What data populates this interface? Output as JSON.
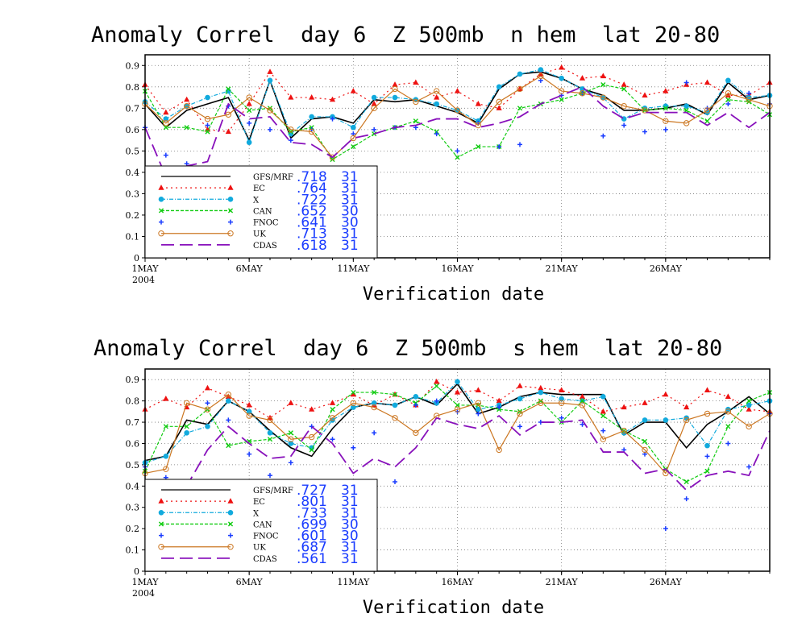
{
  "chart_data": [
    {
      "type": "line",
      "title": "Anomaly Correl  day 6  Z 500mb  n hem  lat 20-80",
      "xlabel": "Verification date",
      "ylabel": "",
      "ylim": [
        0,
        0.95
      ],
      "xlim": [
        1,
        31
      ],
      "grid": true,
      "legend_position": "bottom-left",
      "x_ticks": [
        {
          "day": 1,
          "label": "1MAY",
          "sub": "2004"
        },
        {
          "day": 6,
          "label": "6MAY"
        },
        {
          "day": 11,
          "label": "11MAY"
        },
        {
          "day": 16,
          "label": "16MAY"
        },
        {
          "day": 21,
          "label": "21MAY"
        },
        {
          "day": 26,
          "label": "26MAY"
        }
      ],
      "y_ticks": [
        "0",
        "0.1",
        "0.2",
        "0.3",
        "0.4",
        "0.5",
        "0.6",
        "0.7",
        "0.8",
        "0.9"
      ],
      "days": [
        1,
        2,
        3,
        4,
        5,
        6,
        7,
        8,
        9,
        10,
        11,
        12,
        13,
        14,
        15,
        16,
        17,
        18,
        19,
        20,
        21,
        22,
        23,
        24,
        25,
        26,
        27,
        28,
        29,
        30,
        31
      ],
      "series": [
        {
          "name": "GFS/MRF",
          "score": ".718",
          "count": "31",
          "color": "#000000",
          "style": "solid",
          "marker": "none",
          "values": [
            0.72,
            0.61,
            0.69,
            0.72,
            0.75,
            0.55,
            0.83,
            0.56,
            0.65,
            0.66,
            0.63,
            0.74,
            0.73,
            0.74,
            0.71,
            0.68,
            0.63,
            0.79,
            0.86,
            0.87,
            0.84,
            0.79,
            0.76,
            0.69,
            0.69,
            0.7,
            0.72,
            0.67,
            0.82,
            0.74,
            0.76
          ]
        },
        {
          "name": "EC",
          "score": ".764",
          "count": "31",
          "color": "#ee1111",
          "style": "dotted",
          "marker": "triangle",
          "values": [
            0.81,
            0.68,
            0.74,
            0.6,
            0.59,
            0.72,
            0.87,
            0.75,
            0.75,
            0.74,
            0.78,
            0.72,
            0.81,
            0.82,
            0.75,
            0.78,
            0.72,
            0.7,
            0.79,
            0.86,
            0.89,
            0.84,
            0.85,
            0.81,
            0.76,
            0.78,
            0.81,
            0.82,
            0.76,
            0.76,
            0.82
          ]
        },
        {
          "name": "X",
          "score": ".722",
          "count": "31",
          "color": "#11aadd",
          "style": "dashdot",
          "marker": "circle",
          "values": [
            0.73,
            0.65,
            0.71,
            0.75,
            0.78,
            0.54,
            0.83,
            0.58,
            0.66,
            0.66,
            0.61,
            0.75,
            0.75,
            0.74,
            0.72,
            0.69,
            0.64,
            0.8,
            0.86,
            0.88,
            0.84,
            0.79,
            0.75,
            0.65,
            0.7,
            0.71,
            0.71,
            0.68,
            0.83,
            0.75,
            0.76
          ]
        },
        {
          "name": "CAN",
          "score": ".652",
          "count": "30",
          "color": "#11cc11",
          "style": "shortdash",
          "marker": "x",
          "values": [
            0.78,
            0.61,
            0.61,
            0.59,
            0.79,
            0.69,
            0.7,
            0.59,
            0.61,
            0.46,
            0.52,
            0.58,
            0.61,
            0.64,
            0.59,
            0.47,
            0.52,
            0.52,
            0.7,
            0.72,
            0.74,
            0.77,
            0.81,
            0.79,
            0.69,
            0.7,
            0.69,
            0.64,
            0.74,
            0.73,
            0.67
          ]
        },
        {
          "name": "FNOC",
          "score": ".641",
          "count": "30",
          "color": "#1a3cff",
          "style": "none",
          "marker": "plus",
          "values": [
            0.61,
            0.48,
            0.44,
            0.62,
            0.71,
            0.63,
            0.6,
            0.55,
            0.6,
            0.65,
            0.58,
            0.6,
            0.61,
            0.61,
            0.58,
            0.5,
            0.63,
            0.52,
            0.53,
            0.83,
            0.76,
            0.77,
            0.57,
            0.62,
            0.59,
            0.6,
            0.82,
            0.7,
            0.72,
            0.77,
            0.72
          ]
        },
        {
          "name": "UK",
          "score": ".713",
          "count": "31",
          "color": "#cc7722",
          "style": "solid",
          "marker": "circle-open",
          "values": [
            0.72,
            0.63,
            0.71,
            0.65,
            0.67,
            0.75,
            0.69,
            0.6,
            0.59,
            0.47,
            0.56,
            0.7,
            0.79,
            0.73,
            0.78,
            0.69,
            0.62,
            0.73,
            0.79,
            0.85,
            0.78,
            0.77,
            0.75,
            0.71,
            0.69,
            0.64,
            0.63,
            0.69,
            0.77,
            0.74,
            0.71
          ]
        },
        {
          "name": "CDAS",
          "score": ".618",
          "count": "31",
          "color": "#8811bb",
          "style": "longdash",
          "marker": "none",
          "values": [
            0.61,
            0.38,
            0.43,
            0.45,
            0.72,
            0.65,
            0.66,
            0.54,
            0.53,
            0.47,
            0.56,
            0.58,
            0.61,
            0.62,
            0.65,
            0.65,
            0.61,
            0.63,
            0.66,
            0.72,
            0.76,
            0.8,
            0.71,
            0.65,
            0.68,
            0.68,
            0.68,
            0.62,
            0.68,
            0.61,
            0.68
          ]
        }
      ]
    },
    {
      "type": "line",
      "title": "Anomaly Correl  day 6  Z 500mb  s hem  lat 20-80",
      "xlabel": "Verification date",
      "ylabel": "",
      "ylim": [
        0,
        0.95
      ],
      "xlim": [
        1,
        31
      ],
      "grid": true,
      "legend_position": "bottom-left",
      "x_ticks": [
        {
          "day": 1,
          "label": "1MAY",
          "sub": "2004"
        },
        {
          "day": 6,
          "label": "6MAY"
        },
        {
          "day": 11,
          "label": "11MAY"
        },
        {
          "day": 16,
          "label": "16MAY"
        },
        {
          "day": 21,
          "label": "21MAY"
        },
        {
          "day": 26,
          "label": "26MAY"
        }
      ],
      "y_ticks": [
        "0",
        "0.1",
        "0.2",
        "0.3",
        "0.4",
        "0.5",
        "0.6",
        "0.7",
        "0.8",
        "0.9"
      ],
      "days": [
        1,
        2,
        3,
        4,
        5,
        6,
        7,
        8,
        9,
        10,
        11,
        12,
        13,
        14,
        15,
        16,
        17,
        18,
        19,
        20,
        21,
        22,
        23,
        24,
        25,
        26,
        27,
        28,
        29,
        30,
        31
      ],
      "series": [
        {
          "name": "GFS/MRF",
          "score": ".727",
          "count": "31",
          "color": "#000000",
          "style": "solid",
          "marker": "none",
          "values": [
            0.52,
            0.54,
            0.71,
            0.69,
            0.8,
            0.75,
            0.66,
            0.58,
            0.54,
            0.67,
            0.77,
            0.79,
            0.78,
            0.82,
            0.78,
            0.88,
            0.74,
            0.77,
            0.82,
            0.84,
            0.83,
            0.83,
            0.83,
            0.64,
            0.7,
            0.7,
            0.58,
            0.69,
            0.75,
            0.82,
            0.74
          ]
        },
        {
          "name": "EC",
          "score": ".801",
          "count": "31",
          "color": "#ee1111",
          "style": "dotted",
          "marker": "triangle",
          "values": [
            0.76,
            0.81,
            0.77,
            0.86,
            0.82,
            0.78,
            0.72,
            0.79,
            0.76,
            0.79,
            0.83,
            0.78,
            0.83,
            0.78,
            0.89,
            0.84,
            0.85,
            0.8,
            0.87,
            0.86,
            0.85,
            0.82,
            0.75,
            0.77,
            0.79,
            0.83,
            0.77,
            0.85,
            0.82,
            0.76,
            0.75
          ]
        },
        {
          "name": "X",
          "score": ".733",
          "count": "31",
          "color": "#11aadd",
          "style": "dashdot",
          "marker": "circle",
          "values": [
            0.51,
            0.54,
            0.65,
            0.68,
            0.8,
            0.75,
            0.65,
            0.6,
            0.58,
            0.71,
            0.77,
            0.79,
            0.78,
            0.82,
            0.79,
            0.89,
            0.76,
            0.78,
            0.81,
            0.84,
            0.81,
            0.8,
            0.82,
            0.65,
            0.71,
            0.71,
            0.72,
            0.59,
            0.76,
            0.78,
            0.8
          ]
        },
        {
          "name": "CAN",
          "score": ".699",
          "count": "30",
          "color": "#11cc11",
          "style": "shortdash",
          "marker": "x",
          "values": [
            0.47,
            0.68,
            0.68,
            0.76,
            0.59,
            0.61,
            0.62,
            0.65,
            0.57,
            0.76,
            0.84,
            0.84,
            0.83,
            0.79,
            0.87,
            0.78,
            0.78,
            0.76,
            0.75,
            0.8,
            0.7,
            0.8,
            0.73,
            0.66,
            0.61,
            0.48,
            0.42,
            0.47,
            0.68,
            0.8,
            0.84
          ]
        },
        {
          "name": "FNOC",
          "score": ".601",
          "count": "30",
          "color": "#1a3cff",
          "style": "none",
          "marker": "plus",
          "values": [
            0.49,
            0.44,
            0.39,
            0.79,
            0.71,
            0.55,
            0.45,
            0.51,
            0.68,
            0.62,
            0.58,
            0.65,
            0.42,
            0.78,
            0.8,
            0.75,
            0.74,
            0.77,
            0.68,
            0.7,
            0.72,
            0.69,
            0.66,
            0.57,
            0.55,
            0.2,
            0.34,
            0.54,
            0.6,
            0.49,
            0.74
          ]
        },
        {
          "name": "UK",
          "score": ".687",
          "count": "31",
          "color": "#cc7722",
          "style": "solid",
          "marker": "circle-open",
          "values": [
            0.46,
            0.48,
            0.79,
            0.76,
            0.83,
            0.73,
            0.71,
            0.62,
            0.63,
            0.72,
            0.79,
            0.77,
            0.72,
            0.65,
            0.73,
            0.76,
            0.79,
            0.57,
            0.74,
            0.79,
            0.79,
            0.78,
            0.62,
            0.66,
            0.57,
            0.46,
            0.71,
            0.74,
            0.75,
            0.68,
            0.74
          ]
        },
        {
          "name": "CDAS",
          "score": ".561",
          "count": "31",
          "color": "#8811bb",
          "style": "longdash",
          "marker": "none",
          "values": [
            0.4,
            0.2,
            0.4,
            0.57,
            0.68,
            0.6,
            0.53,
            0.54,
            0.68,
            0.6,
            0.46,
            0.53,
            0.49,
            0.58,
            0.72,
            0.69,
            0.67,
            0.73,
            0.64,
            0.7,
            0.7,
            0.71,
            0.56,
            0.56,
            0.46,
            0.48,
            0.38,
            0.45,
            0.47,
            0.45,
            0.66
          ]
        }
      ]
    }
  ]
}
